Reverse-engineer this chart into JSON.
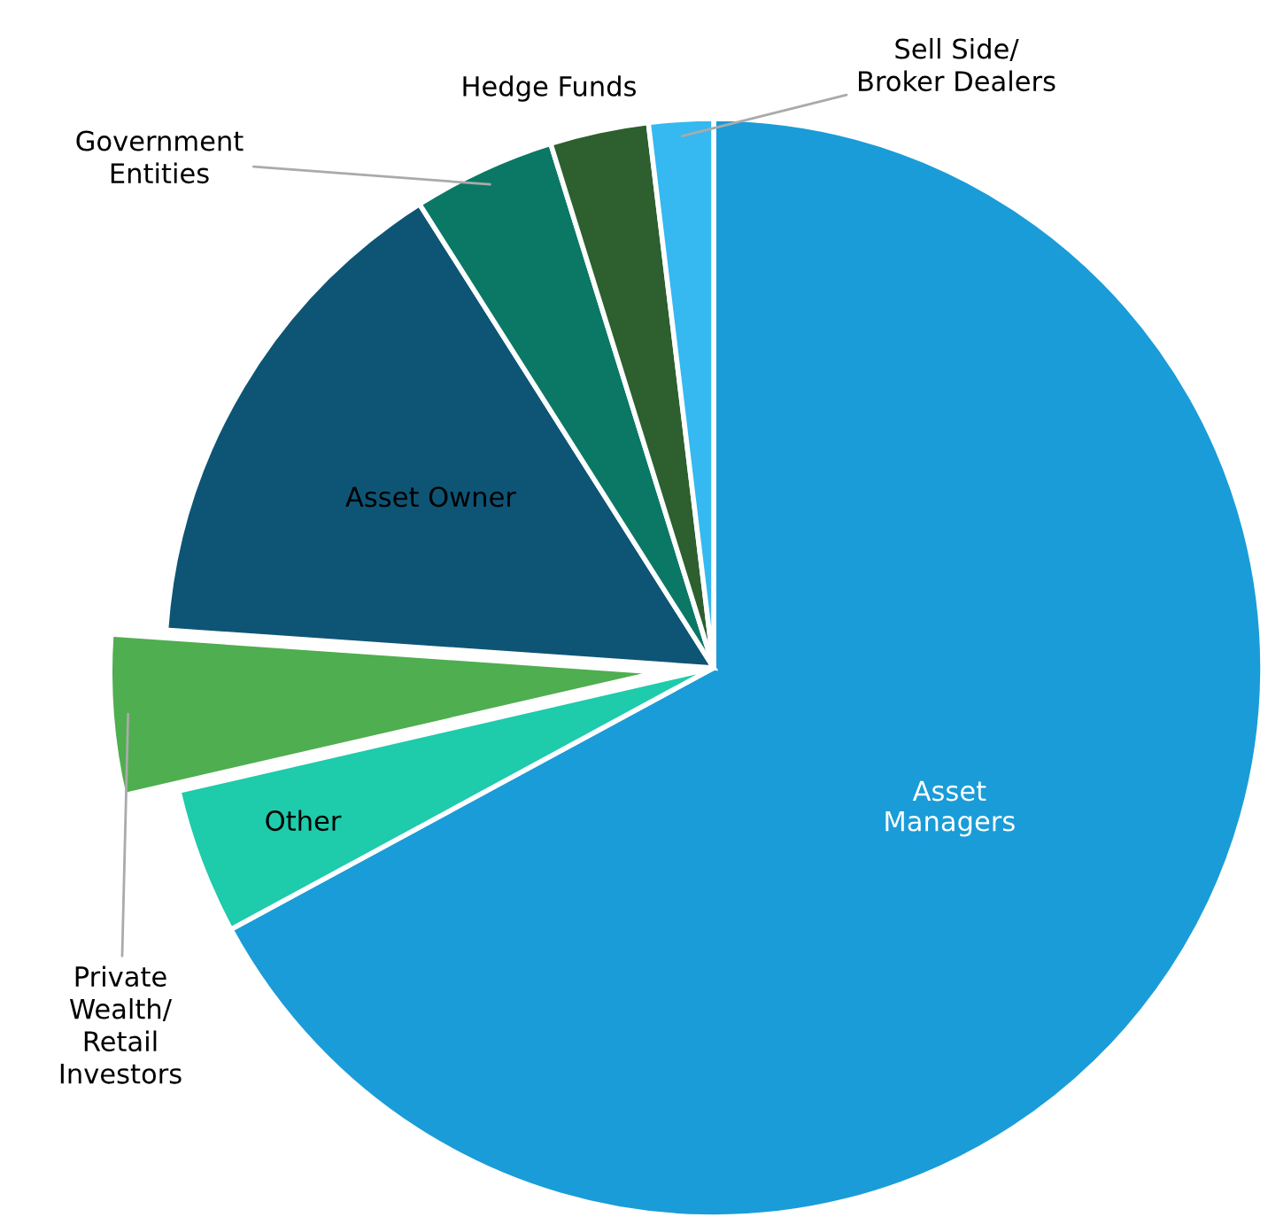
{
  "chart_data": {
    "type": "pie",
    "categories": [
      "Asset\nManagers",
      "Other",
      "Private\nWealth/\nRetail\nInvestors",
      "Asset Owner",
      "Government\nEntities",
      "Hedge Funds",
      "Sell Side/\nBroker Dealers"
    ],
    "values": [
      67.1,
      4.3,
      4.7,
      14.9,
      4.2,
      2.9,
      1.9
    ],
    "colors": [
      "#1a9cd8",
      "#1ecbab",
      "#4fae4f",
      "#0e5575",
      "#0b7866",
      "#2d5f2f",
      "#36b8f0"
    ]
  }
}
